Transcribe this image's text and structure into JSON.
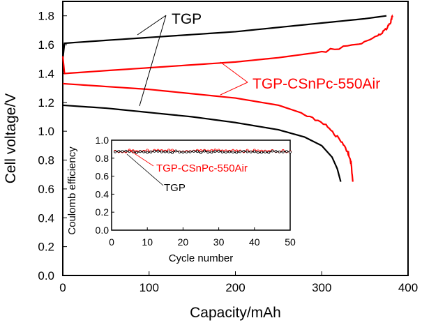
{
  "chart_data": [
    {
      "type": "line",
      "xlabel": "Capacity/mAh",
      "ylabel": "Cell voltage/V",
      "xlim": [
        0,
        400
      ],
      "ylim": [
        0,
        1.9
      ],
      "xticks": [
        0,
        100,
        200,
        300,
        400
      ],
      "yticks": [
        0.0,
        0.2,
        0.4,
        0.6,
        0.8,
        1.0,
        1.2,
        1.4,
        1.6,
        1.8
      ],
      "grid": false,
      "series": [
        {
          "name": "TGP",
          "color": "#000000",
          "segment": "charge",
          "points": [
            [
              0,
              1.5
            ],
            [
              2,
              1.61
            ],
            [
              50,
              1.63
            ],
            [
              100,
              1.65
            ],
            [
              150,
              1.67
            ],
            [
              200,
              1.69
            ],
            [
              250,
              1.72
            ],
            [
              300,
              1.75
            ],
            [
              350,
              1.78
            ],
            [
              375,
              1.8
            ]
          ]
        },
        {
          "name": "TGP",
          "color": "#000000",
          "segment": "discharge",
          "points": [
            [
              0,
              1.18
            ],
            [
              50,
              1.16
            ],
            [
              100,
              1.13
            ],
            [
              150,
              1.1
            ],
            [
              200,
              1.06
            ],
            [
              250,
              1.01
            ],
            [
              280,
              0.96
            ],
            [
              300,
              0.9
            ],
            [
              312,
              0.82
            ],
            [
              318,
              0.74
            ],
            [
              322,
              0.65
            ]
          ]
        },
        {
          "name": "TGP-CSnPc-550Air",
          "color": "#ff0000",
          "segment": "charge",
          "points": [
            [
              0,
              1.52
            ],
            [
              2,
              1.4
            ],
            [
              50,
              1.42
            ],
            [
              100,
              1.44
            ],
            [
              150,
              1.46
            ],
            [
              200,
              1.48
            ],
            [
              250,
              1.51
            ],
            [
              300,
              1.55
            ],
            [
              340,
              1.6
            ],
            [
              365,
              1.66
            ],
            [
              375,
              1.71
            ],
            [
              380,
              1.76
            ],
            [
              382,
              1.8
            ]
          ]
        },
        {
          "name": "TGP-CSnPc-550Air",
          "color": "#ff0000",
          "segment": "discharge",
          "points": [
            [
              0,
              1.33
            ],
            [
              50,
              1.31
            ],
            [
              100,
              1.29
            ],
            [
              150,
              1.26
            ],
            [
              200,
              1.23
            ],
            [
              250,
              1.18
            ],
            [
              280,
              1.12
            ],
            [
              305,
              1.04
            ],
            [
              320,
              0.95
            ],
            [
              330,
              0.86
            ],
            [
              334,
              0.78
            ],
            [
              336,
              0.65
            ]
          ]
        }
      ],
      "annotations": [
        {
          "text": "TGP",
          "color": "#000000"
        },
        {
          "text": "TGP-CSnPc-550Air",
          "color": "#ff0000"
        }
      ]
    },
    {
      "type": "line",
      "xlabel": "Cycle number",
      "ylabel": "Coulomb efficiency",
      "xlim": [
        0,
        50
      ],
      "ylim": [
        0,
        1.0
      ],
      "xticks": [
        0,
        10,
        20,
        30,
        40,
        50
      ],
      "yticks": [
        0.0,
        0.2,
        0.4,
        0.6,
        0.8,
        1.0
      ],
      "series": [
        {
          "name": "TGP-CSnPc-550Air",
          "color": "#ff0000",
          "value": 0.88
        },
        {
          "name": "TGP",
          "color": "#000000",
          "value": 0.87
        }
      ]
    }
  ]
}
